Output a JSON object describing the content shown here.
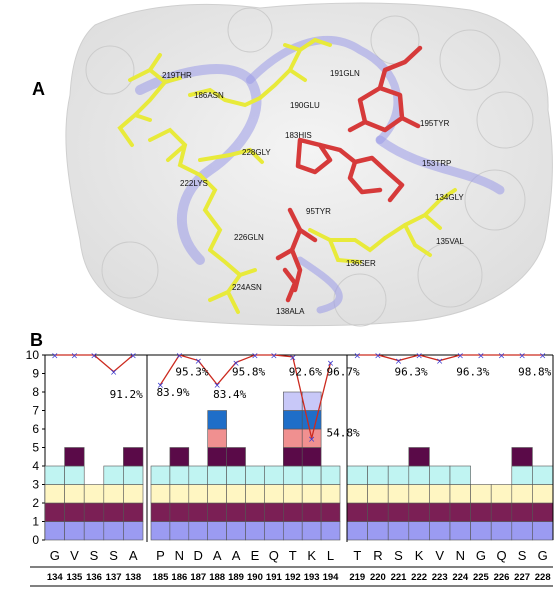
{
  "panel_a": {
    "letter": "A",
    "residue_labels": [
      {
        "text": "219THR",
        "color": "yellow"
      },
      {
        "text": "186ASN",
        "color": "yellow"
      },
      {
        "text": "191GLN",
        "color": "yellow"
      },
      {
        "text": "190GLU",
        "color": "yellow"
      },
      {
        "text": "195TYR",
        "color": "red"
      },
      {
        "text": "183HIS",
        "color": "red"
      },
      {
        "text": "228GLY",
        "color": "yellow"
      },
      {
        "text": "153TRP",
        "color": "red"
      },
      {
        "text": "222LYS",
        "color": "yellow"
      },
      {
        "text": "134GLY",
        "color": "yellow"
      },
      {
        "text": "95TYR",
        "color": "red"
      },
      {
        "text": "226GLN",
        "color": "yellow"
      },
      {
        "text": "135VAL",
        "color": "yellow"
      },
      {
        "text": "136SER",
        "color": "yellow"
      },
      {
        "text": "224ASN",
        "color": "yellow"
      },
      {
        "text": "138ALA",
        "color": "red"
      }
    ]
  },
  "panel_b": {
    "letter": "B",
    "y_ticks": [
      "0",
      "1",
      "2",
      "3",
      "4",
      "5",
      "6",
      "7",
      "8",
      "9",
      "10"
    ],
    "residues": [
      "G",
      "V",
      "S",
      "S",
      "A",
      "P",
      "N",
      "D",
      "A",
      "A",
      "E",
      "Q",
      "T",
      "K",
      "L",
      "T",
      "R",
      "S",
      "K",
      "V",
      "N",
      "G",
      "Q",
      "S",
      "G"
    ],
    "numbers": [
      "134",
      "135",
      "136",
      "137",
      "138",
      "185",
      "186",
      "187",
      "188",
      "189",
      "190",
      "191",
      "192",
      "193",
      "194",
      "219",
      "220",
      "221",
      "222",
      "223",
      "224",
      "225",
      "226",
      "227",
      "228"
    ],
    "groups": [
      [
        0,
        4
      ],
      [
        5,
        14
      ],
      [
        15,
        24
      ]
    ],
    "percent_labels": [
      {
        "text": "91.2%",
        "col": 3,
        "level": 7.9
      },
      {
        "text": "83.9%",
        "col": 5,
        "level": 8.0
      },
      {
        "text": "95.3%",
        "col": 6,
        "level": 9.1
      },
      {
        "text": "83.4%",
        "col": 8,
        "level": 7.9
      },
      {
        "text": "95.8%",
        "col": 9,
        "level": 9.1
      },
      {
        "text": "92.6%",
        "col": 12,
        "level": 9.1
      },
      {
        "text": "96.7%",
        "col": 14,
        "level": 9.1
      },
      {
        "text": "54.8%",
        "col": 14,
        "level": 5.8
      },
      {
        "text": "96.3%",
        "col": 17,
        "level": 9.1
      },
      {
        "text": "96.3%",
        "col": 20,
        "level": 9.1
      },
      {
        "text": "98.8%",
        "col": 23,
        "level": 9.1
      }
    ],
    "conservation_line": [
      10,
      10,
      10,
      9.1,
      10,
      8.4,
      10,
      9.7,
      8.4,
      9.6,
      10,
      10,
      9.9,
      5.5,
      9.6,
      10,
      10,
      9.7,
      10,
      9.7,
      10,
      10,
      10,
      10,
      10
    ],
    "stacks": [
      [
        "#9b9bf2",
        "#7b1f55",
        "#fff6c2",
        "#c0f4f2"
      ],
      [
        "#9b9bf2",
        "#7b1f55",
        "#fff6c2",
        "#c0f4f2",
        "#5a0a48"
      ],
      [
        "#9b9bf2",
        "#7b1f55",
        "#fff6c2"
      ],
      [
        "#9b9bf2",
        "#7b1f55",
        "#fff6c2",
        "#c0f4f2"
      ],
      [
        "#9b9bf2",
        "#7b1f55",
        "#fff6c2",
        "#c0f4f2",
        "#5a0a48"
      ],
      [
        "#9b9bf2",
        "#7b1f55",
        "#fff6c2",
        "#c0f4f2"
      ],
      [
        "#9b9bf2",
        "#7b1f55",
        "#fff6c2",
        "#c0f4f2",
        "#5a0a48"
      ],
      [
        "#9b9bf2",
        "#7b1f55",
        "#fff6c2",
        "#c0f4f2"
      ],
      [
        "#9b9bf2",
        "#7b1f55",
        "#fff6c2",
        "#c0f4f2",
        "#5a0a48",
        "#f09090",
        "#1f6ec8"
      ],
      [
        "#9b9bf2",
        "#7b1f55",
        "#fff6c2",
        "#c0f4f2",
        "#5a0a48"
      ],
      [
        "#9b9bf2",
        "#7b1f55",
        "#fff6c2",
        "#c0f4f2"
      ],
      [
        "#9b9bf2",
        "#7b1f55",
        "#fff6c2",
        "#c0f4f2"
      ],
      [
        "#9b9bf2",
        "#7b1f55",
        "#fff6c2",
        "#c0f4f2",
        "#5a0a48",
        "#f09090",
        "#1f6ec8",
        "#c8c8f8"
      ],
      [
        "#9b9bf2",
        "#7b1f55",
        "#fff6c2",
        "#c0f4f2",
        "#5a0a48",
        "#f09090",
        "#1f6ec8",
        "#c8c8f8"
      ],
      [
        "#9b9bf2",
        "#7b1f55",
        "#fff6c2",
        "#c0f4f2"
      ],
      [
        "#9b9bf2",
        "#7b1f55",
        "#fff6c2",
        "#c0f4f2"
      ],
      [
        "#9b9bf2",
        "#7b1f55",
        "#fff6c2",
        "#c0f4f2"
      ],
      [
        "#9b9bf2",
        "#7b1f55",
        "#fff6c2",
        "#c0f4f2"
      ],
      [
        "#9b9bf2",
        "#7b1f55",
        "#fff6c2",
        "#c0f4f2",
        "#5a0a48"
      ],
      [
        "#9b9bf2",
        "#7b1f55",
        "#fff6c2",
        "#c0f4f2"
      ],
      [
        "#9b9bf2",
        "#7b1f55",
        "#fff6c2",
        "#c0f4f2"
      ],
      [
        "#9b9bf2",
        "#7b1f55",
        "#fff6c2"
      ],
      [
        "#9b9bf2",
        "#7b1f55",
        "#fff6c2"
      ],
      [
        "#9b9bf2",
        "#7b1f55",
        "#fff6c2",
        "#c0f4f2",
        "#5a0a48"
      ],
      [
        "#9b9bf2",
        "#7b1f55",
        "#fff6c2",
        "#c0f4f2"
      ]
    ],
    "colors": {
      "line": "#cc2a1f",
      "marker": "#3a3ad0",
      "axis": "#000000"
    }
  }
}
